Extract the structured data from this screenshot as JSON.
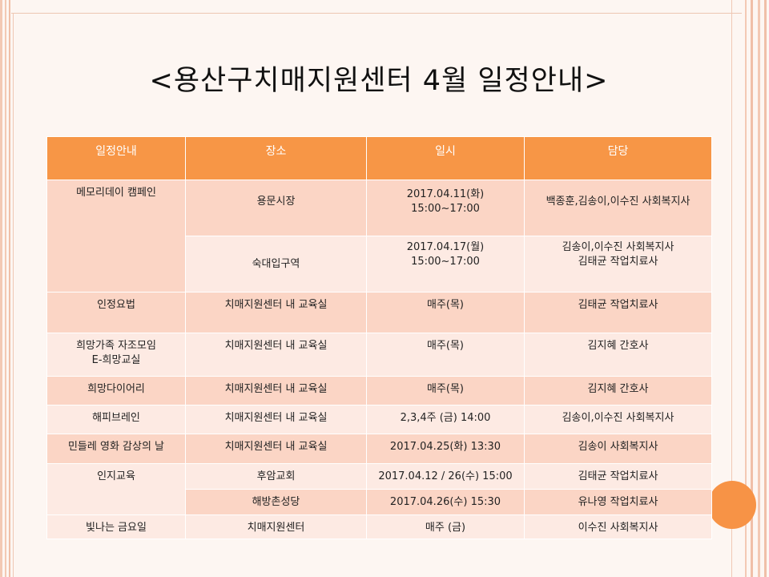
{
  "slide": {
    "title": "<용산구치매지원센터  4월  일정안내>",
    "accent_color": "#f79646"
  },
  "table": {
    "headers": [
      "일정안내",
      "장소",
      "일시",
      "담당"
    ],
    "rows": [
      {
        "program": "메모리데이 캠페인",
        "place": "용문시장",
        "date_line1": "2017.04.11(화)",
        "date_line2": "15:00~17:00",
        "staff": "백종훈,김송이,이수진 사회복지사"
      },
      {
        "place": "숙대입구역",
        "date_line1": "2017.04.17(월)",
        "date_line2": "15:00~17:00",
        "staff_line1": "김송이,이수진 사회복지사",
        "staff_line2": "김태균 작업치료사"
      },
      {
        "program": "인정요법",
        "place": "치매지원센터 내 교육실",
        "date": "매주(목)",
        "staff": "김태균 작업치료사"
      },
      {
        "program_line1": "희망가족 자조모임",
        "program_line2": "E-희망교실",
        "place": "치매지원센터 내 교육실",
        "date": "매주(목)",
        "staff": "김지혜 간호사"
      },
      {
        "program": "희망다이어리",
        "place": "치매지원센터 내 교육실",
        "date": "매주(목)",
        "staff": "김지혜 간호사"
      },
      {
        "program": "해피브레인",
        "place": "치매지원센터 내 교육실",
        "date": "2,3,4주 (금)  14:00",
        "staff": "김송이,이수진 사회복지사"
      },
      {
        "program": "민들레 영화 감상의 날",
        "place": "치매지원센터 내 교육실",
        "date": "2017.04.25(화) 13:30",
        "staff": "김송이 사회복지사"
      },
      {
        "program": "인지교육",
        "place": "후암교회",
        "date": "2017.04.12 / 26(수) 15:00",
        "staff": "김태균 작업치료사"
      },
      {
        "place": "해방촌성당",
        "date": "2017.04.26(수) 15:30",
        "staff": "유나영 작업치료사"
      },
      {
        "program": "빛나는 금요일",
        "place": "치매지원센터",
        "date": "매주 (금)",
        "staff": "이수진 사회복지사"
      }
    ]
  }
}
